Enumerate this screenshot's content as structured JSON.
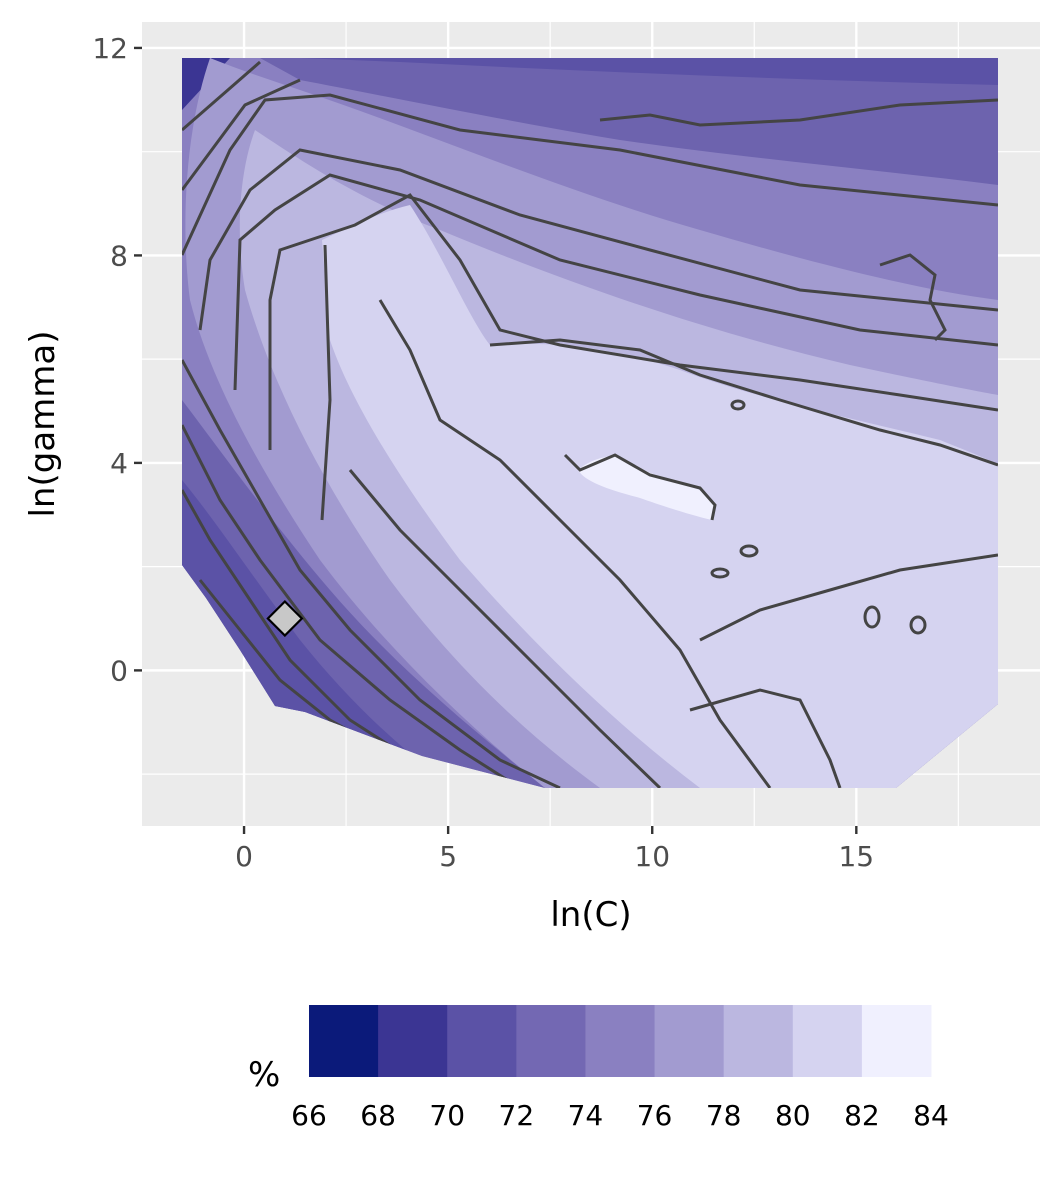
{
  "chart_data": {
    "type": "contour",
    "xlabel": "ln(C)",
    "ylabel": "ln(gamma)",
    "x_ticks": [
      0,
      5,
      10,
      15
    ],
    "y_ticks": [
      0,
      4,
      8,
      12
    ],
    "xlim": [
      -2.5,
      19.5
    ],
    "ylim": [
      -3,
      12.5
    ],
    "grid": true,
    "legend_position": "bottom",
    "legend": {
      "title": "%",
      "breaks": [
        66,
        68,
        70,
        72,
        74,
        76,
        78,
        80,
        82,
        84
      ],
      "colors": [
        "#0b1a7a",
        "#3b3593",
        "#5b52a6",
        "#7368b3",
        "#8a80c1",
        "#a29bd0",
        "#bbb7e0",
        "#d5d3f0",
        "#f0f0fe"
      ]
    },
    "data_domain": {
      "x": [
        -2.3,
        18.3
      ],
      "y": [
        -2.3,
        11.8
      ]
    },
    "optimum_marker": {
      "x": 1,
      "y": 1
    }
  }
}
